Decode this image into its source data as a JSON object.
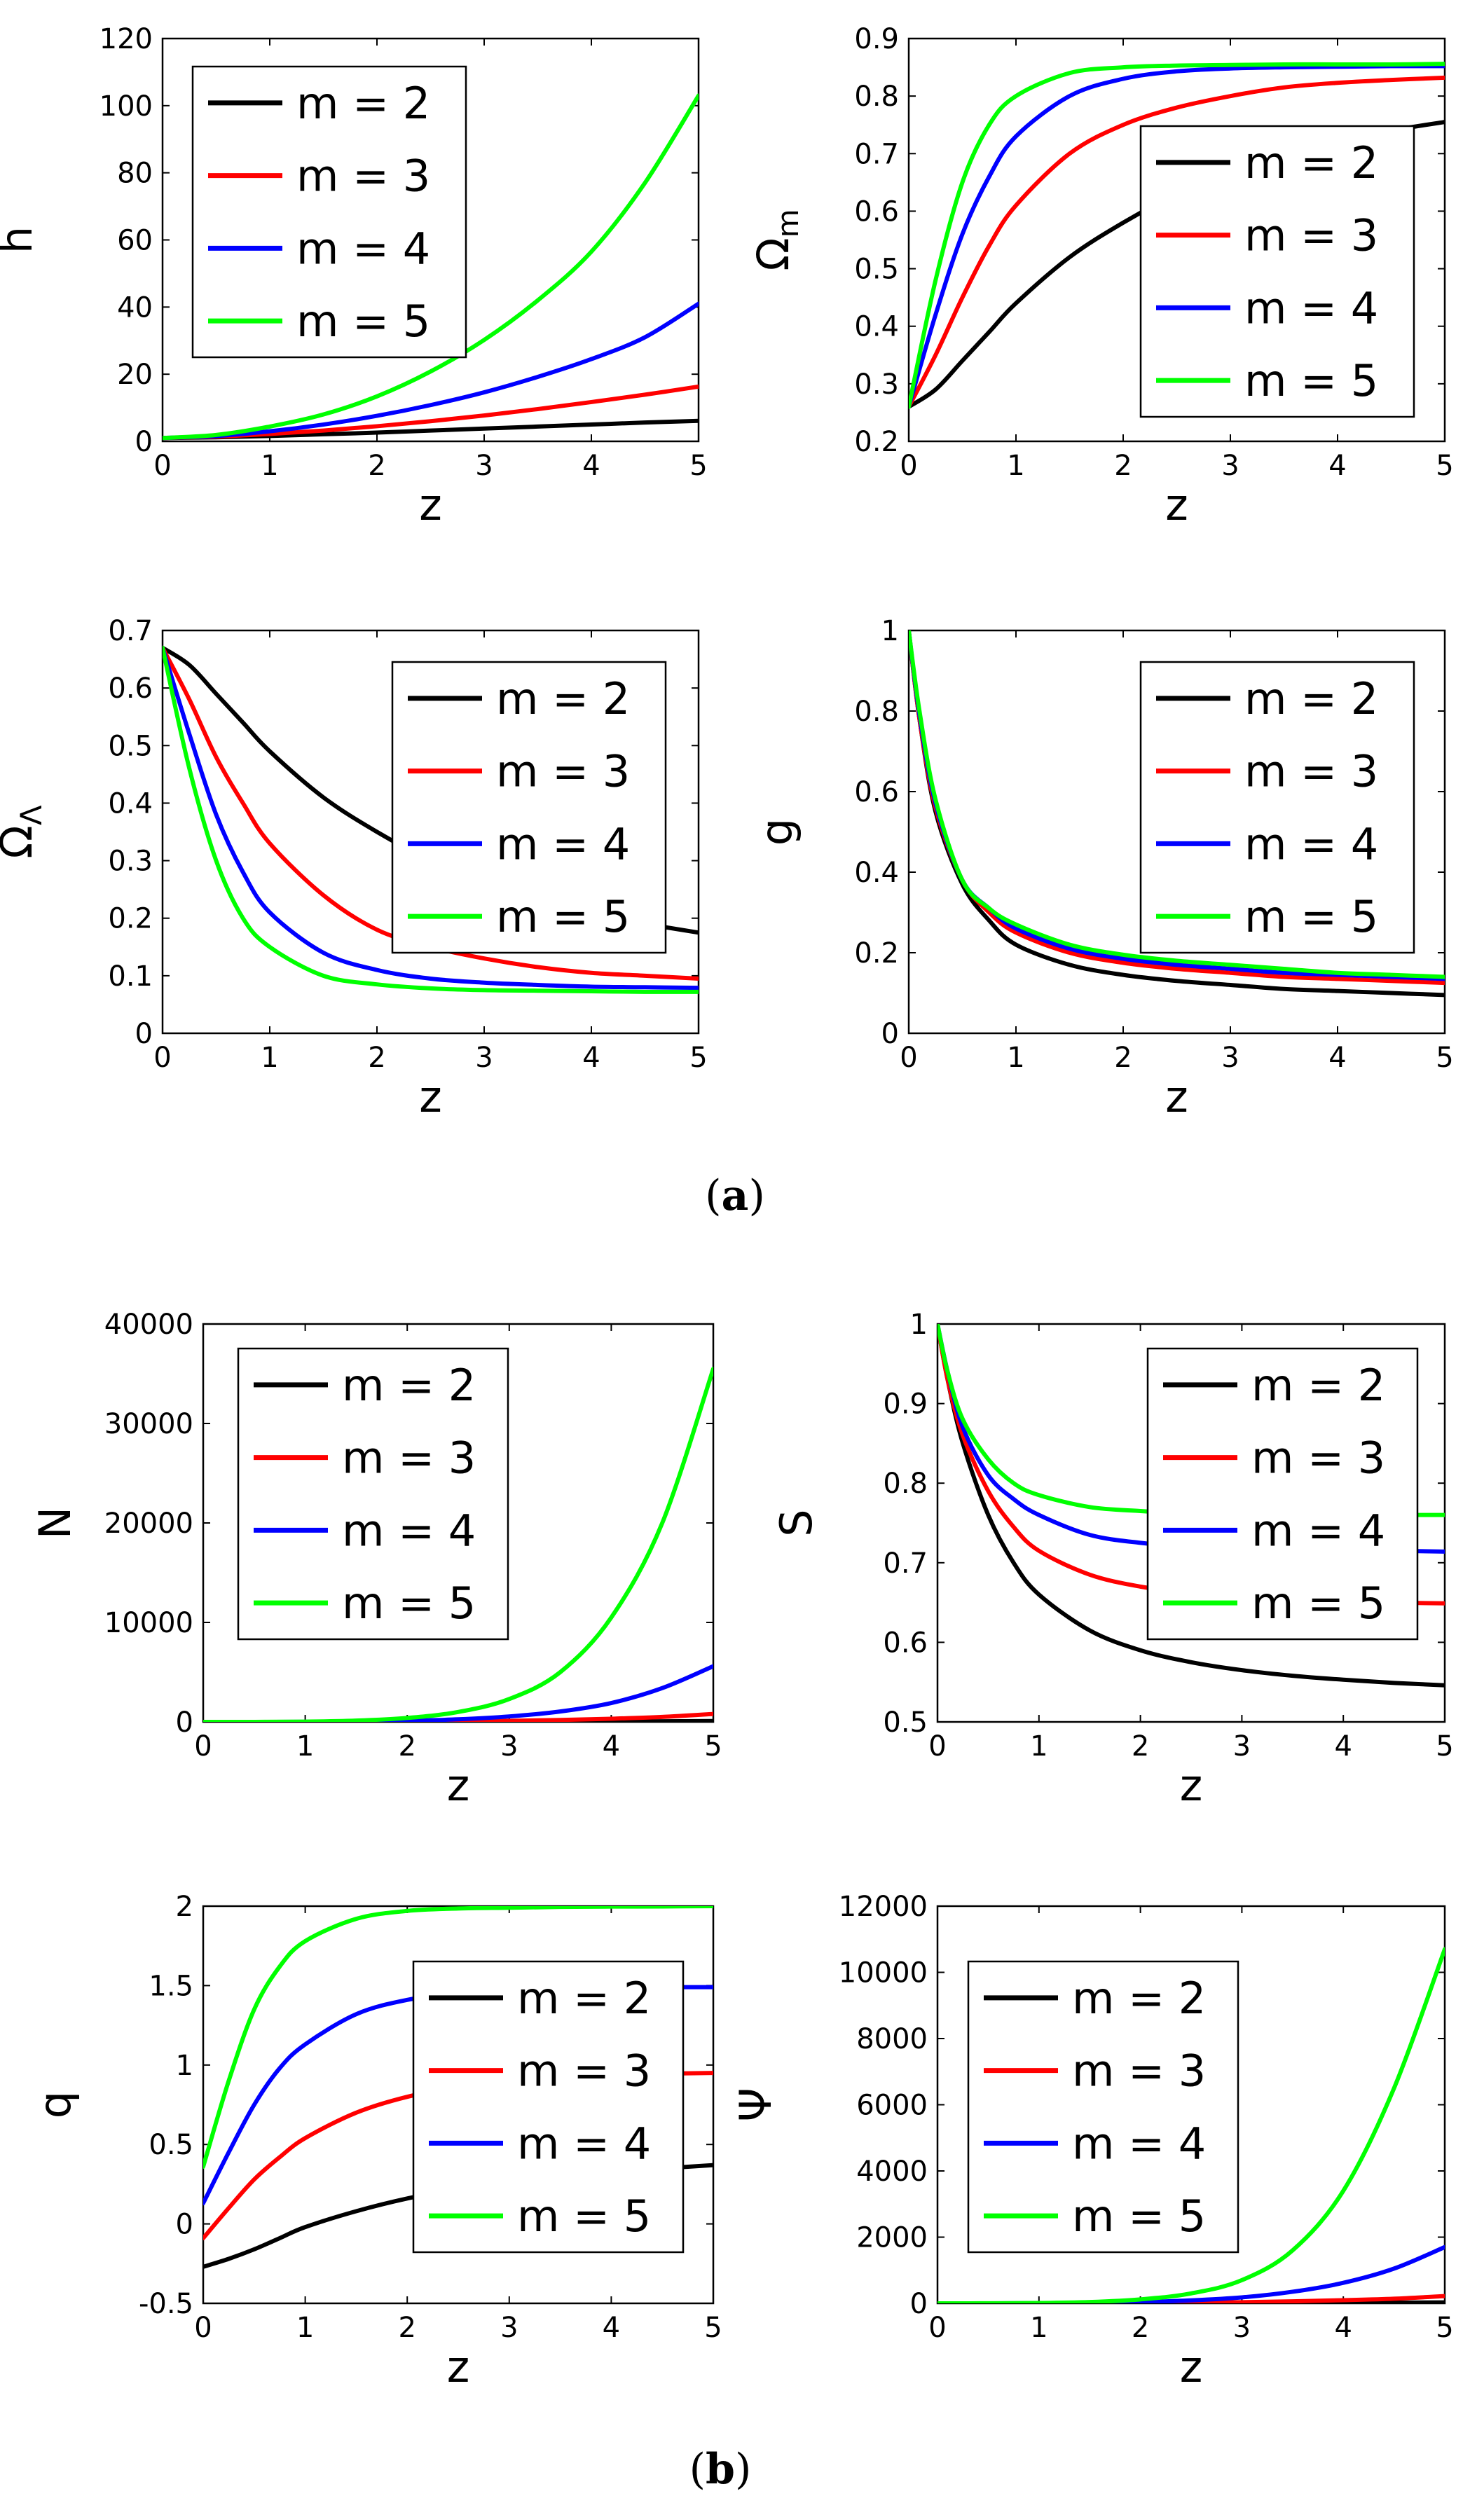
{
  "figure": {
    "label_a": "a",
    "label_b": "b"
  },
  "colors": {
    "m2": "#000000",
    "m3": "#ff0000",
    "m4": "#0000ff",
    "m5": "#00ff00"
  },
  "legend_labels": [
    "m = 2",
    "m = 3",
    "m = 4",
    "m = 5"
  ],
  "chart_data": [
    {
      "id": "h",
      "type": "line",
      "panel": "a",
      "title": "",
      "xlabel": "z",
      "ylabel": "h",
      "xlim": [
        0,
        5
      ],
      "ylim": [
        0,
        120
      ],
      "xticks": [
        0,
        1,
        2,
        3,
        4,
        5
      ],
      "yticks": [
        0,
        20,
        40,
        60,
        80,
        100,
        120
      ],
      "legend_position": "top-left",
      "x": [
        0,
        0.5,
        1,
        1.5,
        2,
        2.5,
        3,
        3.5,
        4,
        4.5,
        5
      ],
      "series": [
        {
          "name": "m = 2",
          "color": "#000000",
          "values": [
            1,
            1.2,
            1.6,
            2.1,
            2.6,
            3.2,
            3.8,
            4.4,
            5.0,
            5.6,
            6.1
          ]
        },
        {
          "name": "m = 3",
          "color": "#ff0000",
          "values": [
            1,
            1.4,
            2.2,
            3.2,
            4.5,
            6.0,
            7.7,
            9.6,
            11.7,
            13.9,
            16.3
          ]
        },
        {
          "name": "m = 4",
          "color": "#0000ff",
          "values": [
            1,
            1.6,
            3.0,
            5.0,
            7.6,
            10.8,
            14.6,
            19.2,
            24.5,
            31.0,
            41.0
          ]
        },
        {
          "name": "m = 5",
          "color": "#00ff00",
          "values": [
            1,
            1.9,
            4.4,
            8.0,
            13.4,
            20.8,
            30.2,
            42.0,
            56.5,
            77.0,
            103.0
          ]
        }
      ]
    },
    {
      "id": "omega_m",
      "type": "line",
      "panel": "a",
      "title": "",
      "xlabel": "z",
      "ylabel": "Ω",
      "ylabel_sub": "m",
      "xlim": [
        0,
        5
      ],
      "ylim": [
        0.2,
        0.9
      ],
      "xticks": [
        0,
        1,
        2,
        3,
        4,
        5
      ],
      "yticks": [
        0.2,
        0.3,
        0.4,
        0.5,
        0.6,
        0.7,
        0.8,
        0.9
      ],
      "legend_position": "right",
      "x": [
        0,
        0.25,
        0.5,
        0.75,
        1,
        1.5,
        2,
        2.5,
        3,
        3.5,
        4,
        4.5,
        5
      ],
      "series": [
        {
          "name": "m = 2",
          "color": "#000000",
          "values": [
            0.26,
            0.29,
            0.34,
            0.39,
            0.44,
            0.52,
            0.58,
            0.63,
            0.67,
            0.7,
            0.72,
            0.74,
            0.755
          ]
        },
        {
          "name": "m = 3",
          "color": "#ff0000",
          "values": [
            0.26,
            0.35,
            0.45,
            0.54,
            0.61,
            0.7,
            0.75,
            0.78,
            0.8,
            0.815,
            0.823,
            0.828,
            0.832
          ]
        },
        {
          "name": "m = 4",
          "color": "#0000ff",
          "values": [
            0.26,
            0.42,
            0.56,
            0.66,
            0.73,
            0.8,
            0.83,
            0.843,
            0.848,
            0.85,
            0.851,
            0.852,
            0.852
          ]
        },
        {
          "name": "m = 5",
          "color": "#00ff00",
          "values": [
            0.26,
            0.48,
            0.65,
            0.75,
            0.8,
            0.84,
            0.85,
            0.853,
            0.854,
            0.855,
            0.855,
            0.855,
            0.856
          ]
        }
      ]
    },
    {
      "id": "omega_lambda",
      "type": "line",
      "panel": "a",
      "title": "",
      "xlabel": "z",
      "ylabel": "Ω",
      "ylabel_sub": "Λ",
      "xlim": [
        0,
        5
      ],
      "ylim": [
        0,
        0.7
      ],
      "xticks": [
        0,
        1,
        2,
        3,
        4,
        5
      ],
      "yticks": [
        0,
        0.1,
        0.2,
        0.3,
        0.4,
        0.5,
        0.6,
        0.7
      ],
      "legend_position": "top-right",
      "x": [
        0,
        0.25,
        0.5,
        0.75,
        1,
        1.5,
        2,
        2.5,
        3,
        3.5,
        4,
        4.5,
        5
      ],
      "series": [
        {
          "name": "m = 2",
          "color": "#000000",
          "values": [
            0.67,
            0.64,
            0.59,
            0.54,
            0.49,
            0.41,
            0.35,
            0.3,
            0.26,
            0.23,
            0.205,
            0.19,
            0.175
          ]
        },
        {
          "name": "m = 3",
          "color": "#ff0000",
          "values": [
            0.67,
            0.58,
            0.48,
            0.4,
            0.33,
            0.24,
            0.18,
            0.15,
            0.13,
            0.115,
            0.105,
            0.1,
            0.095
          ]
        },
        {
          "name": "m = 4",
          "color": "#0000ff",
          "values": [
            0.67,
            0.52,
            0.38,
            0.28,
            0.21,
            0.14,
            0.11,
            0.095,
            0.088,
            0.084,
            0.081,
            0.08,
            0.079
          ]
        },
        {
          "name": "m = 5",
          "color": "#00ff00",
          "values": [
            0.67,
            0.46,
            0.3,
            0.2,
            0.15,
            0.1,
            0.085,
            0.078,
            0.075,
            0.074,
            0.073,
            0.072,
            0.072
          ]
        }
      ]
    },
    {
      "id": "g",
      "type": "line",
      "panel": "a",
      "title": "",
      "xlabel": "z",
      "ylabel": "g",
      "xlim": [
        0,
        5
      ],
      "ylim": [
        0,
        1
      ],
      "xticks": [
        0,
        1,
        2,
        3,
        4,
        5
      ],
      "yticks": [
        0,
        0.2,
        0.4,
        0.6,
        0.8,
        1
      ],
      "legend_position": "top-right",
      "x": [
        0,
        0.1,
        0.25,
        0.5,
        0.75,
        1,
        1.5,
        2,
        2.5,
        3,
        3.5,
        4,
        4.5,
        5
      ],
      "series": [
        {
          "name": "m = 2",
          "color": "#000000",
          "values": [
            1,
            0.78,
            0.55,
            0.37,
            0.28,
            0.22,
            0.17,
            0.145,
            0.13,
            0.12,
            0.11,
            0.105,
            0.1,
            0.095
          ]
        },
        {
          "name": "m = 3",
          "color": "#ff0000",
          "values": [
            1,
            0.78,
            0.56,
            0.38,
            0.3,
            0.25,
            0.2,
            0.175,
            0.16,
            0.15,
            0.14,
            0.135,
            0.13,
            0.125
          ]
        },
        {
          "name": "m = 4",
          "color": "#0000ff",
          "values": [
            1,
            0.79,
            0.57,
            0.38,
            0.31,
            0.26,
            0.21,
            0.185,
            0.17,
            0.16,
            0.15,
            0.145,
            0.14,
            0.135
          ]
        },
        {
          "name": "m = 5",
          "color": "#00ff00",
          "values": [
            1,
            0.8,
            0.58,
            0.38,
            0.31,
            0.27,
            0.22,
            0.195,
            0.18,
            0.17,
            0.16,
            0.15,
            0.145,
            0.14
          ]
        }
      ]
    },
    {
      "id": "N",
      "type": "line",
      "panel": "b",
      "title": "",
      "xlabel": "z",
      "ylabel": "N",
      "xlim": [
        0,
        5
      ],
      "ylim": [
        0,
        40000
      ],
      "xticks": [
        0,
        1,
        2,
        3,
        4,
        5
      ],
      "yticks": [
        0,
        10000,
        20000,
        30000,
        40000
      ],
      "legend_position": "top-left",
      "x": [
        0,
        0.5,
        1,
        1.5,
        2,
        2.5,
        3,
        3.5,
        4,
        4.5,
        5
      ],
      "series": [
        {
          "name": "m = 2",
          "color": "#000000",
          "values": [
            0,
            0,
            1,
            2,
            5,
            10,
            18,
            30,
            45,
            65,
            90
          ]
        },
        {
          "name": "m = 3",
          "color": "#ff0000",
          "values": [
            0,
            1,
            4,
            12,
            30,
            60,
            110,
            190,
            320,
            500,
            800
          ]
        },
        {
          "name": "m = 4",
          "color": "#0000ff",
          "values": [
            0,
            2,
            10,
            40,
            110,
            260,
            550,
            1050,
            1900,
            3400,
            5600
          ]
        },
        {
          "name": "m = 5",
          "color": "#00ff00",
          "values": [
            0,
            4,
            30,
            130,
            400,
            1000,
            2300,
            5000,
            10500,
            20000,
            35500
          ]
        }
      ]
    },
    {
      "id": "S",
      "type": "line",
      "panel": "b",
      "title": "",
      "xlabel": "z",
      "ylabel": "S",
      "xlim": [
        0,
        5
      ],
      "ylim": [
        0.5,
        1
      ],
      "xticks": [
        0,
        1,
        2,
        3,
        4,
        5
      ],
      "yticks": [
        0.5,
        0.6,
        0.7,
        0.8,
        0.9,
        1
      ],
      "legend_position": "top-right",
      "x": [
        0,
        0.1,
        0.25,
        0.5,
        0.75,
        1,
        1.5,
        2,
        2.5,
        3,
        3.5,
        4,
        4.5,
        5
      ],
      "series": [
        {
          "name": "m = 2",
          "color": "#000000",
          "values": [
            1,
            0.93,
            0.85,
            0.76,
            0.7,
            0.66,
            0.615,
            0.59,
            0.575,
            0.565,
            0.558,
            0.553,
            0.549,
            0.546
          ]
        },
        {
          "name": "m = 3",
          "color": "#ff0000",
          "values": [
            1,
            0.93,
            0.86,
            0.79,
            0.745,
            0.715,
            0.685,
            0.67,
            0.662,
            0.657,
            0.654,
            0.652,
            0.65,
            0.649
          ]
        },
        {
          "name": "m = 4",
          "color": "#0000ff",
          "values": [
            1,
            0.94,
            0.87,
            0.81,
            0.78,
            0.76,
            0.735,
            0.725,
            0.72,
            0.718,
            0.716,
            0.715,
            0.715,
            0.714
          ]
        },
        {
          "name": "m = 5",
          "color": "#00ff00",
          "values": [
            1,
            0.94,
            0.88,
            0.83,
            0.8,
            0.785,
            0.77,
            0.765,
            0.762,
            0.761,
            0.76,
            0.76,
            0.76,
            0.76
          ]
        }
      ]
    },
    {
      "id": "q",
      "type": "line",
      "panel": "b",
      "title": "",
      "xlabel": "z",
      "ylabel": "q",
      "xlim": [
        0,
        5
      ],
      "ylim": [
        -0.5,
        2
      ],
      "xticks": [
        0,
        1,
        2,
        3,
        4,
        5
      ],
      "yticks": [
        -0.5,
        0,
        0.5,
        1,
        1.5,
        2
      ],
      "legend_position": "right",
      "x": [
        0,
        0.25,
        0.5,
        0.75,
        1,
        1.5,
        2,
        2.5,
        3,
        3.5,
        4,
        4.5,
        5
      ],
      "series": [
        {
          "name": "m = 2",
          "color": "#000000",
          "values": [
            -0.27,
            -0.22,
            -0.16,
            -0.09,
            -0.02,
            0.08,
            0.16,
            0.22,
            0.27,
            0.31,
            0.335,
            0.35,
            0.37
          ]
        },
        {
          "name": "m = 3",
          "color": "#ff0000",
          "values": [
            -0.09,
            0.1,
            0.28,
            0.42,
            0.54,
            0.7,
            0.8,
            0.86,
            0.9,
            0.92,
            0.935,
            0.945,
            0.95
          ]
        },
        {
          "name": "m = 4",
          "color": "#0000ff",
          "values": [
            0.13,
            0.45,
            0.75,
            0.98,
            1.13,
            1.32,
            1.41,
            1.45,
            1.47,
            1.48,
            1.485,
            1.49,
            1.49
          ]
        },
        {
          "name": "m = 5",
          "color": "#00ff00",
          "values": [
            0.36,
            0.9,
            1.35,
            1.62,
            1.78,
            1.92,
            1.97,
            1.985,
            1.99,
            1.995,
            1.997,
            1.998,
            2.0
          ]
        }
      ]
    },
    {
      "id": "psi",
      "type": "line",
      "panel": "b",
      "title": "",
      "xlabel": "z",
      "ylabel": "Ψ",
      "xlim": [
        0,
        5
      ],
      "ylim": [
        0,
        12000
      ],
      "xticks": [
        0,
        1,
        2,
        3,
        4,
        5
      ],
      "yticks": [
        0,
        2000,
        4000,
        6000,
        8000,
        10000,
        12000
      ],
      "legend_position": "top-left",
      "x": [
        0,
        0.5,
        1,
        1.5,
        2,
        2.5,
        3,
        3.5,
        4,
        4.5,
        5
      ],
      "series": [
        {
          "name": "m = 2",
          "color": "#000000",
          "values": [
            0,
            0,
            0,
            1,
            2,
            4,
            7,
            11,
            16,
            22,
            30
          ]
        },
        {
          "name": "m = 3",
          "color": "#ff0000",
          "values": [
            0,
            0,
            1,
            4,
            10,
            20,
            35,
            60,
            95,
            140,
            220
          ]
        },
        {
          "name": "m = 4",
          "color": "#0000ff",
          "values": [
            0,
            1,
            5,
            15,
            40,
            90,
            180,
            350,
            620,
            1050,
            1700
          ]
        },
        {
          "name": "m = 5",
          "color": "#00ff00",
          "values": [
            0,
            2,
            10,
            40,
            120,
            300,
            700,
            1600,
            3400,
            6500,
            10700
          ]
        }
      ]
    }
  ]
}
